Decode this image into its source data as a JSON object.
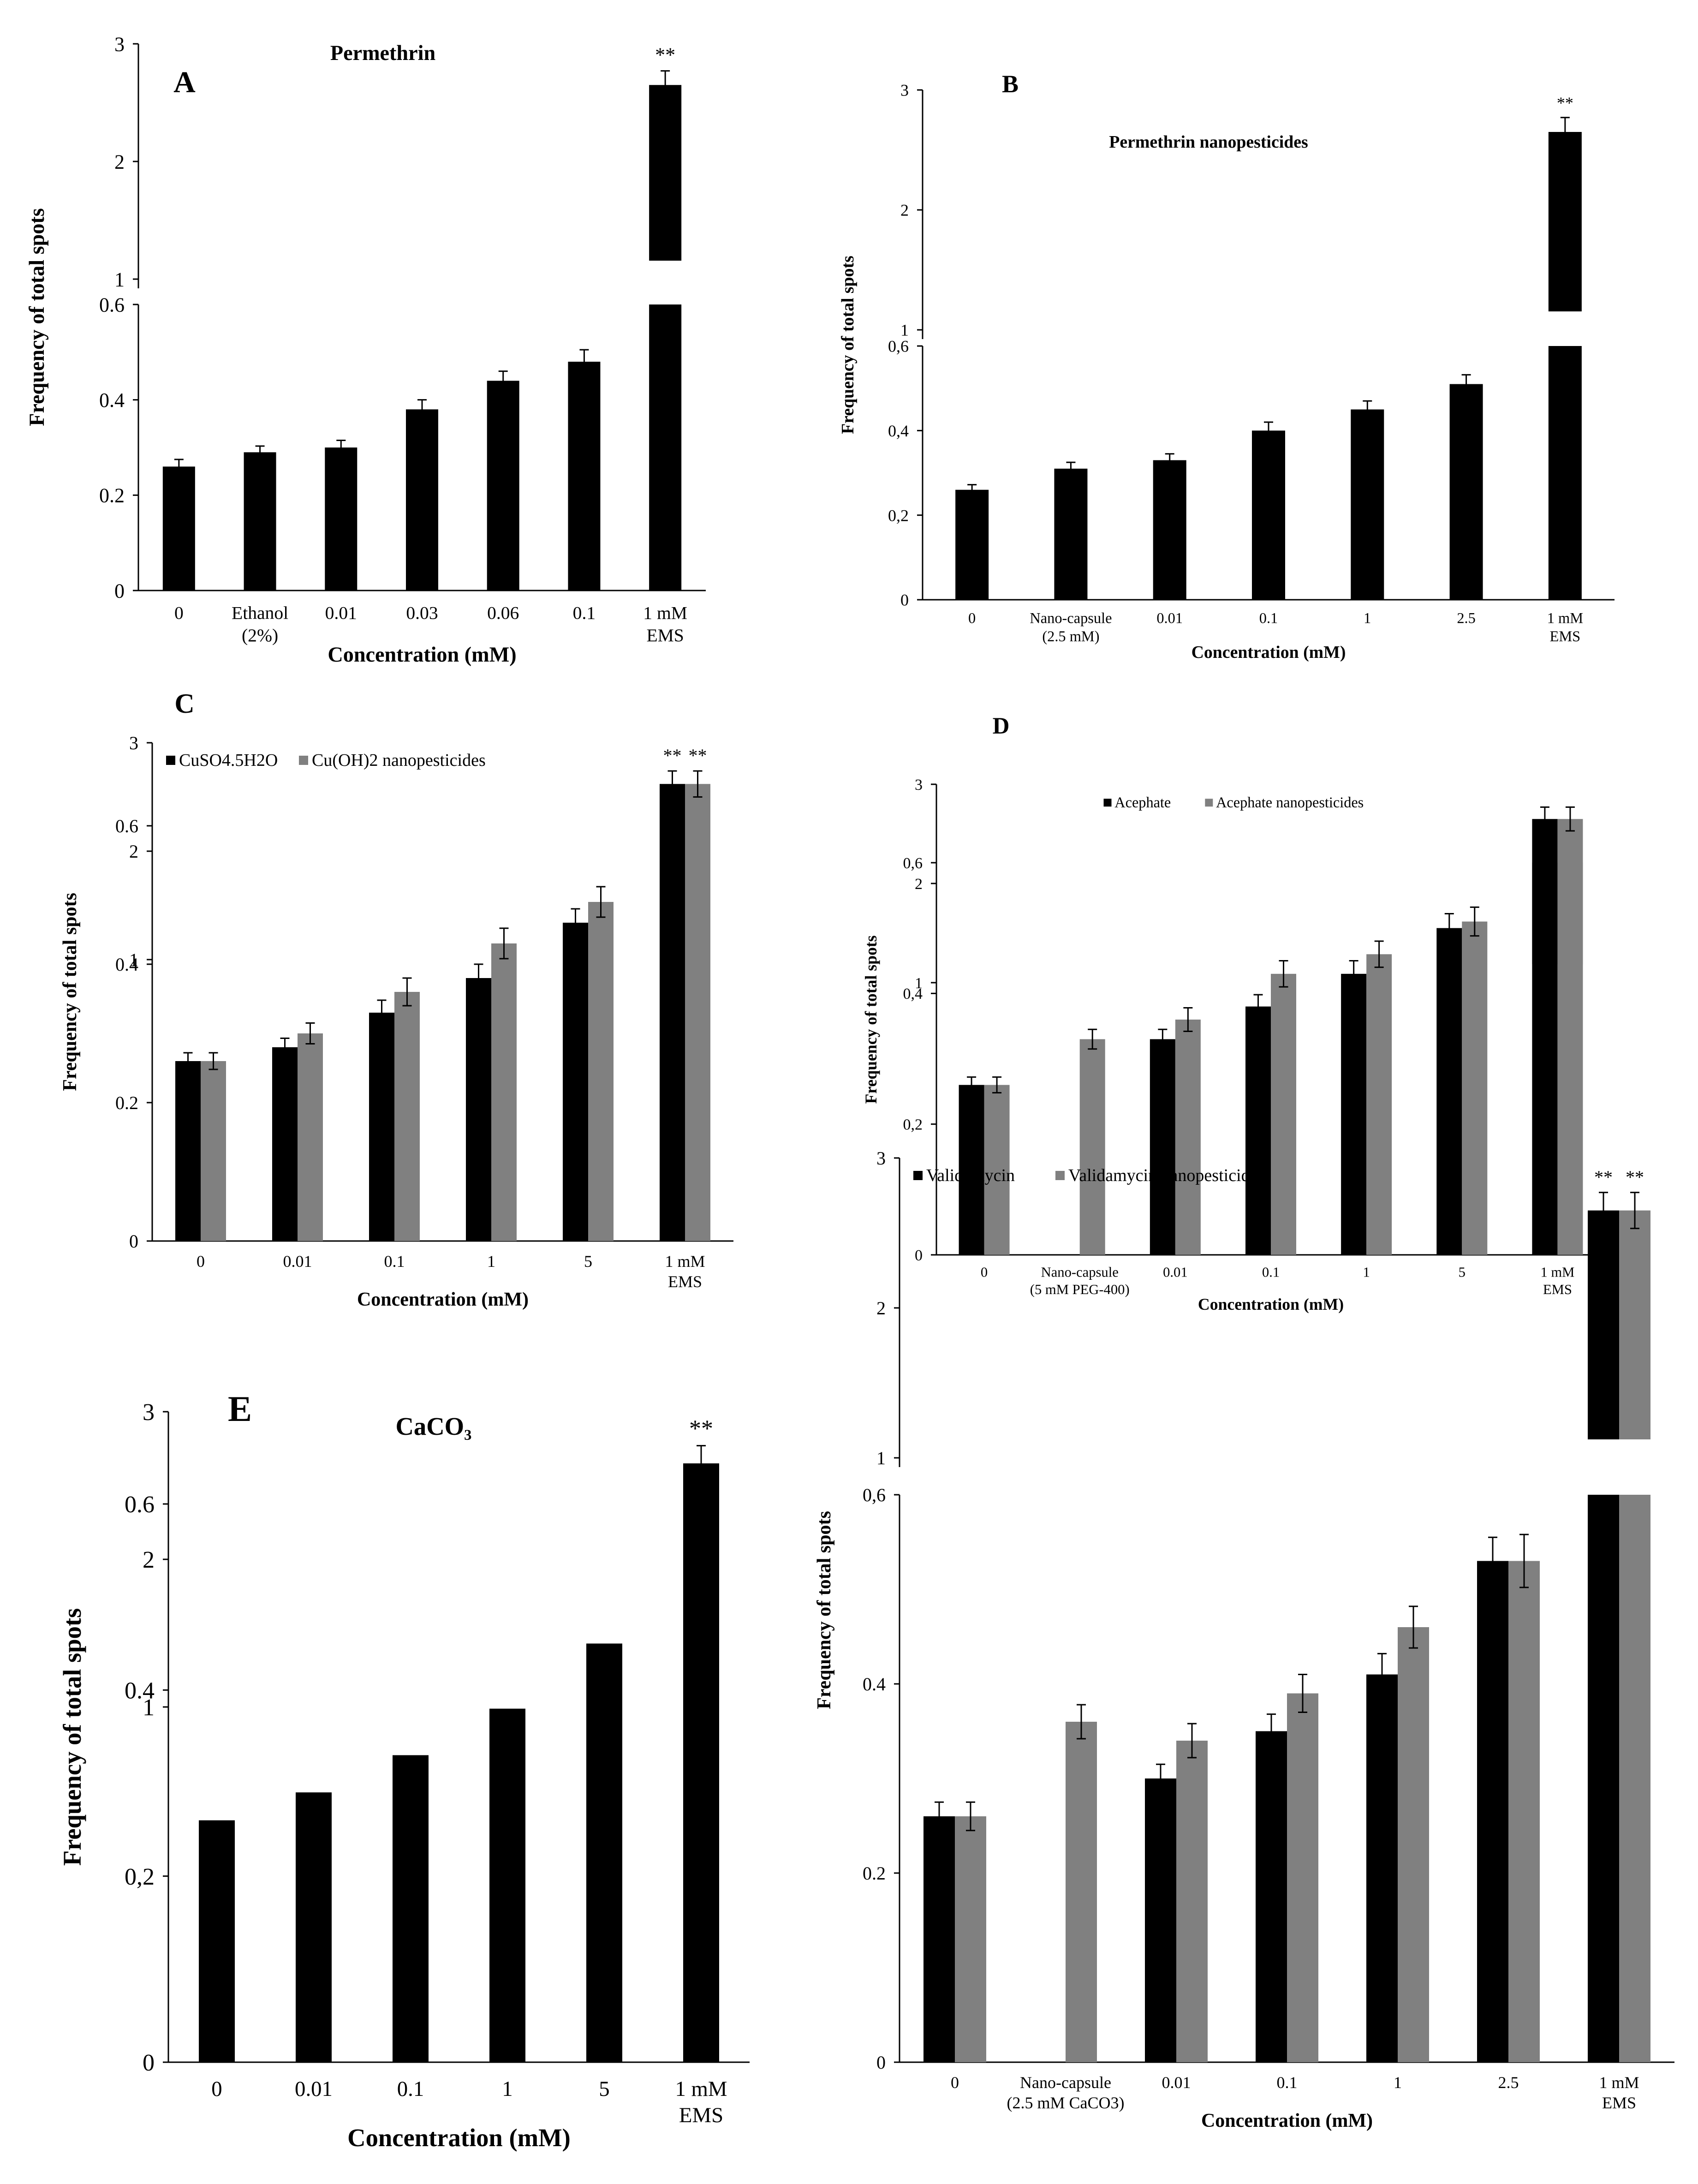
{
  "figure": {
    "description_colors": {
      "series_primary": "#000000",
      "series_secondary": "#808080",
      "axis": "#000000",
      "background": "#ffffff"
    }
  },
  "chart_data": [
    {
      "panel": "A",
      "type": "bar",
      "title": "Permethrin",
      "xlabel": "Concentration (mM)",
      "ylabel": "Frequency of total spots",
      "categories": [
        "0",
        "Ethanol (2%)",
        "0.01",
        "0.03",
        "0.06",
        "0.1",
        "1 mM EMS"
      ],
      "series": [
        {
          "name": "Permethrin",
          "color": "#000000",
          "values": [
            0.26,
            0.29,
            0.3,
            0.38,
            0.44,
            0.48,
            2.65
          ],
          "errors": [
            0.015,
            0.013,
            0.015,
            0.02,
            0.02,
            0.025,
            0.12
          ],
          "significance": [
            "",
            "",
            "",
            "",
            "",
            "",
            "**"
          ]
        }
      ],
      "y_lower_ticks": [
        "0",
        "0.2",
        "0.4",
        "0.6"
      ],
      "y_upper_ticks": [
        "1",
        "2",
        "3"
      ],
      "ylim": [
        0,
        3
      ],
      "axis_break": [
        0.6,
        1.0
      ],
      "legend": null
    },
    {
      "panel": "B",
      "type": "bar",
      "title": "Permethrin nanopesticides",
      "xlabel": "Concentration (mM)",
      "ylabel": "Frequency of total spots",
      "categories": [
        "0",
        "Nano-capsule (2.5 mM)",
        "0.01",
        "0.1",
        "1",
        "2.5",
        "1 mM EMS"
      ],
      "series": [
        {
          "name": "Permethrin nanopesticides",
          "color": "#000000",
          "values": [
            0.26,
            0.31,
            0.33,
            0.4,
            0.45,
            0.51,
            2.65
          ],
          "errors": [
            0.012,
            0.015,
            0.015,
            0.02,
            0.02,
            0.022,
            0.12
          ],
          "significance": [
            "",
            "",
            "",
            "",
            "",
            "",
            "**"
          ]
        }
      ],
      "y_lower_ticks": [
        "0",
        "0,2",
        "0,4",
        "0,6"
      ],
      "y_upper_ticks": [
        "1",
        "2",
        "3"
      ],
      "ylim": [
        0,
        3
      ],
      "axis_break": [
        0.6,
        1.0
      ],
      "legend": null
    },
    {
      "panel": "C",
      "type": "bar",
      "title": "",
      "xlabel": "Concentration (mM)",
      "ylabel": "Frequency of total spots",
      "categories": [
        "0",
        "0.01",
        "0.1",
        "1",
        "5",
        "1 mM EMS"
      ],
      "series": [
        {
          "name": "CuSO4.5H2O",
          "color": "#000000",
          "values": [
            0.26,
            0.28,
            0.33,
            0.38,
            0.46,
            2.62
          ],
          "errors": [
            0.012,
            0.013,
            0.018,
            0.02,
            0.02,
            0.12
          ],
          "significance": [
            "",
            "",
            "",
            "",
            "",
            "**"
          ]
        },
        {
          "name": "Cu(OH)2 nanopesticides",
          "color": "#808080",
          "values": [
            0.26,
            0.3,
            0.36,
            0.43,
            0.49,
            2.62
          ],
          "errors": [
            0.012,
            0.015,
            0.02,
            0.022,
            0.022,
            0.12
          ],
          "significance": [
            "",
            "",
            "",
            "",
            "",
            "**"
          ]
        }
      ],
      "y_lower_ticks": [
        "0",
        "0.2",
        "0.4",
        "0.6"
      ],
      "y_upper_ticks": [
        "1",
        "2",
        "3"
      ],
      "ylim": [
        0,
        3
      ],
      "axis_break": [
        0.6,
        1.0
      ],
      "legend": "top-left"
    },
    {
      "panel": "D",
      "type": "bar",
      "title": "",
      "xlabel": "Concentration (mM)",
      "ylabel": "Frequency of total spots",
      "categories": [
        "0",
        "Nano-capsule (5 mM PEG-400)",
        "0.01",
        "0.1",
        "1",
        "5",
        "1 mM EMS"
      ],
      "series": [
        {
          "name": "Acephate",
          "color": "#000000",
          "values": [
            0.26,
            null,
            0.33,
            0.38,
            0.43,
            0.5,
            2.65
          ],
          "errors": [
            0.012,
            null,
            0.015,
            0.018,
            0.02,
            0.022,
            0.12
          ],
          "significance": [
            "",
            "",
            "",
            "",
            "",
            "",
            ""
          ]
        },
        {
          "name": "Acephate nanopesticides",
          "color": "#808080",
          "values": [
            0.26,
            0.33,
            0.36,
            0.43,
            0.46,
            0.51,
            2.65
          ],
          "errors": [
            0.012,
            0.015,
            0.018,
            0.02,
            0.02,
            0.022,
            0.12
          ],
          "significance": [
            "",
            "",
            "",
            "",
            "",
            "",
            ""
          ]
        }
      ],
      "y_lower_ticks": [
        "0",
        "0,2",
        "0,4",
        "0,6"
      ],
      "y_upper_ticks": [
        "1",
        "2",
        "3"
      ],
      "ylim": [
        0,
        3
      ],
      "axis_break": [
        0.6,
        1.0
      ],
      "legend": "top-center"
    },
    {
      "panel": "E",
      "type": "bar",
      "title": "CaCO₃",
      "xlabel": "Concentration (mM)",
      "ylabel": "Frequency of total spots",
      "categories": [
        "0",
        "0.01",
        "0.1",
        "1",
        "5",
        "1 mM EMS"
      ],
      "series": [
        {
          "name": "CaCO₃",
          "color": "#000000",
          "values": [
            0.26,
            0.29,
            0.33,
            0.38,
            0.45,
            2.65
          ],
          "errors": [
            null,
            null,
            null,
            null,
            null,
            0.12
          ],
          "significance": [
            "",
            "",
            "",
            "",
            "",
            "**"
          ]
        }
      ],
      "y_lower_ticks": [
        "0",
        "0,2",
        "0.4",
        "0.6"
      ],
      "y_upper_ticks": [
        "1",
        "2",
        "3"
      ],
      "ylim": [
        0,
        3
      ],
      "axis_break": [
        0.6,
        1.0
      ],
      "legend": null
    },
    {
      "panel": "F",
      "type": "bar",
      "title": "",
      "xlabel": "Concentration (mM)",
      "ylabel": "Frequency of total spots",
      "categories": [
        "0",
        "Nano-capsule (2.5 mM CaCO3)",
        "0.01",
        "0.1",
        "1",
        "2.5",
        "1 mM EMS"
      ],
      "series": [
        {
          "name": "Validamycin",
          "color": "#000000",
          "values": [
            0.26,
            null,
            0.3,
            0.35,
            0.41,
            0.53,
            2.65
          ],
          "errors": [
            0.015,
            null,
            0.015,
            0.018,
            0.022,
            0.025,
            0.12
          ],
          "significance": [
            "",
            "",
            "",
            "",
            "",
            "",
            "**"
          ]
        },
        {
          "name": "Validamycin nanopesticides",
          "color": "#808080",
          "values": [
            0.26,
            0.36,
            0.34,
            0.39,
            0.46,
            0.53,
            2.65
          ],
          "errors": [
            0.015,
            0.018,
            0.018,
            0.02,
            0.022,
            0.028,
            0.12
          ],
          "significance": [
            "",
            "",
            "",
            "",
            "",
            "",
            "**"
          ]
        }
      ],
      "y_lower_ticks": [
        "0",
        "0.2",
        "0.4",
        "0,6"
      ],
      "y_upper_ticks": [
        "1",
        "2",
        "3"
      ],
      "ylim": [
        0,
        3
      ],
      "axis_break": [
        0.6,
        1.0
      ],
      "legend": "top-left"
    }
  ]
}
